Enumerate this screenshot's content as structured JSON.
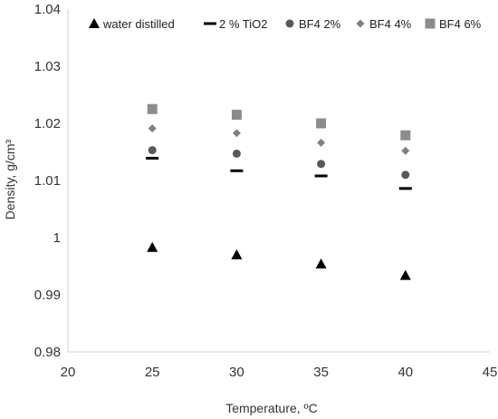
{
  "chart_data": {
    "type": "scatter",
    "xlabel": "Temperature, ºC",
    "ylabel": "Density, g/cm³",
    "xlim": [
      20,
      45
    ],
    "ylim": [
      0.98,
      1.04
    ],
    "x_ticks": [
      "20",
      "25",
      "30",
      "35",
      "40",
      "45"
    ],
    "y_ticks": [
      "0.98",
      "0.99",
      "1",
      "1.01",
      "1.02",
      "1.03",
      "1.04"
    ],
    "grid": false,
    "legend_position": "top",
    "series": [
      {
        "name": "water distilled",
        "marker": "triangle",
        "color": "#000000",
        "x": [
          25,
          30,
          35,
          40
        ],
        "y": [
          0.9983,
          0.997,
          0.9954,
          0.9934
        ]
      },
      {
        "name": "2 % TiO2",
        "marker": "dash",
        "color": "#000000",
        "x": [
          25,
          30,
          35,
          40
        ],
        "y": [
          1.0139,
          1.0117,
          1.0108,
          1.0086
        ]
      },
      {
        "name": "BF4 2%",
        "marker": "circle",
        "color": "#595959",
        "x": [
          25,
          30,
          35,
          40
        ],
        "y": [
          1.0153,
          1.0147,
          1.0129,
          1.011
        ]
      },
      {
        "name": "BF4 4%",
        "marker": "diamond",
        "color": "#808080",
        "x": [
          25,
          30,
          35,
          40
        ],
        "y": [
          1.0191,
          1.0183,
          1.0166,
          1.0152
        ]
      },
      {
        "name": "BF4 6%",
        "marker": "square",
        "color": "#8c8c8c",
        "x": [
          25,
          30,
          35,
          40
        ],
        "y": [
          1.0225,
          1.0215,
          1.02,
          1.0179
        ]
      }
    ]
  }
}
